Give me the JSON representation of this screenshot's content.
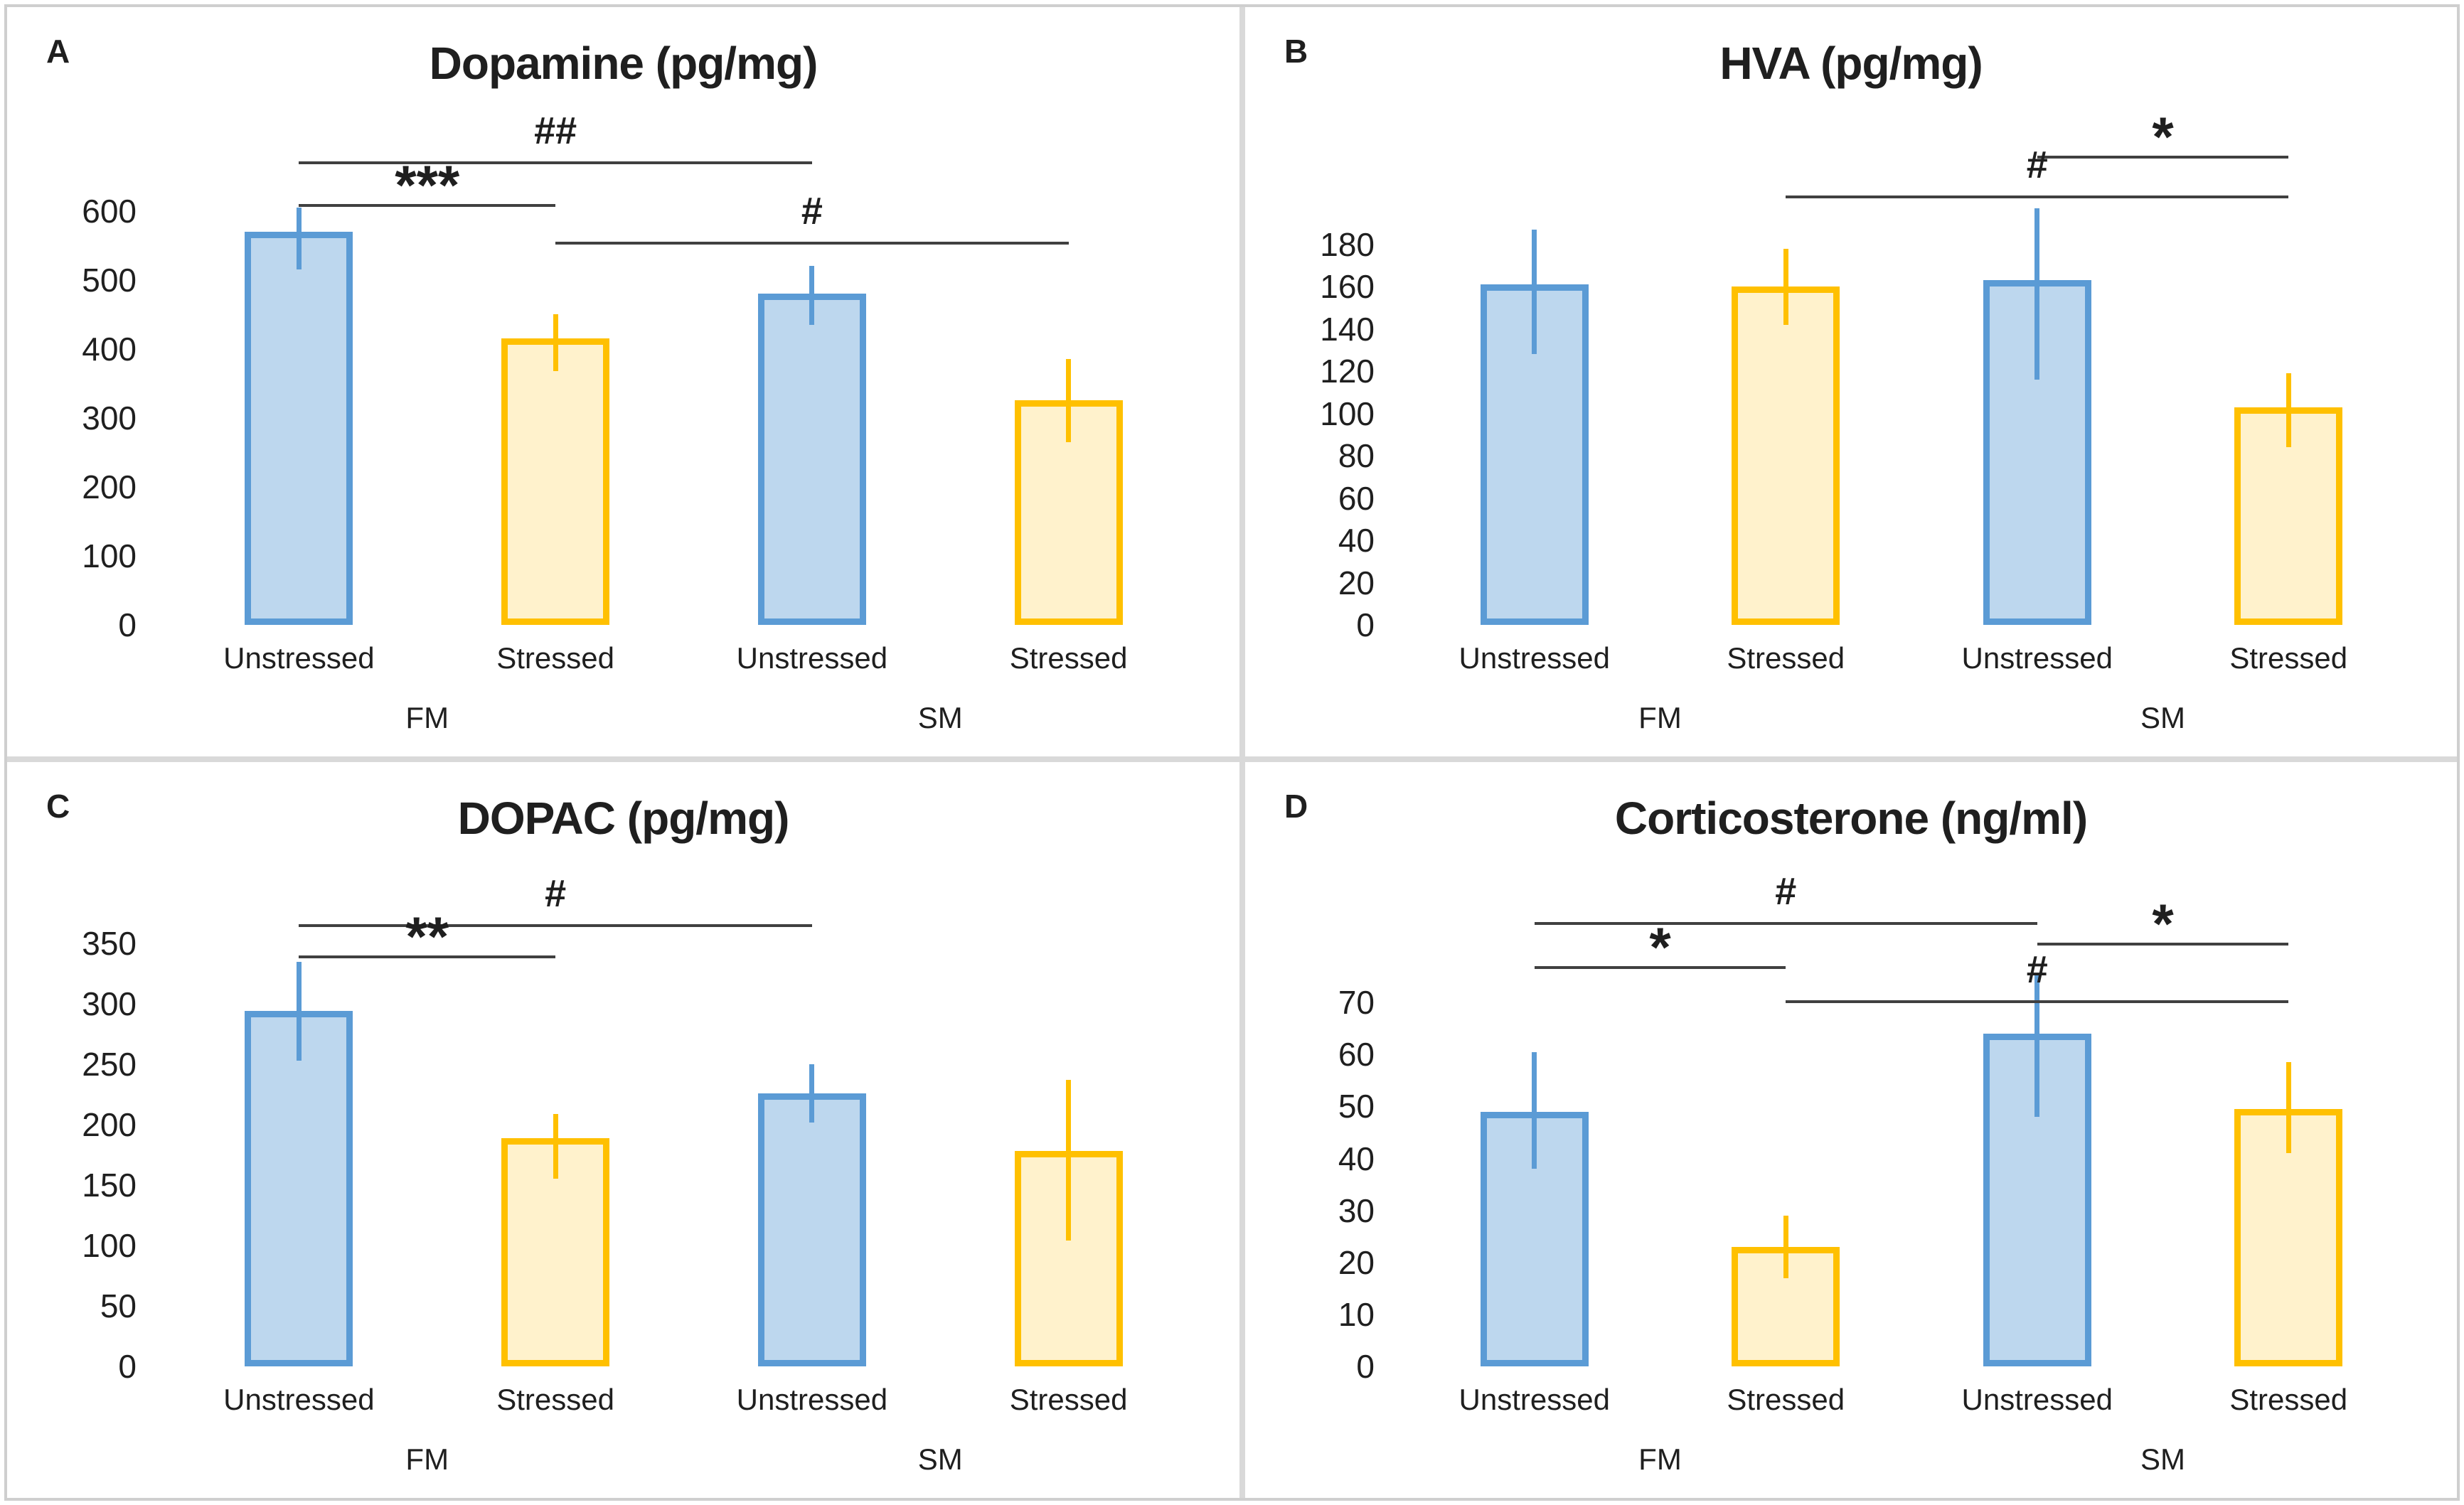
{
  "colors": {
    "blue_fill": "#BDD7EE",
    "blue_edge": "#5B9BD5",
    "yellow_fill": "#FFF2CC",
    "yellow_edge": "#FFC000",
    "sig_line": "#404040",
    "text": "#1f1f1f",
    "divider": "#d9d9d9"
  },
  "chart_data": [
    {
      "type": "bar",
      "panel_label": "A",
      "title": "Dopamine (pg/mg)",
      "categories": [
        "Unstressed",
        "Stressed",
        "Unstressed",
        "Stressed"
      ],
      "values": [
        570,
        415,
        480,
        325
      ],
      "error_low": [
        515,
        368,
        435,
        265
      ],
      "error_high": [
        605,
        450,
        520,
        385
      ],
      "bar_styles": [
        "blue",
        "yellow",
        "blue",
        "yellow"
      ],
      "y_ticks": [
        0,
        100,
        200,
        300,
        400,
        500,
        600
      ],
      "ylim": [
        0,
        720
      ],
      "group_labels": [
        "FM",
        "SM"
      ],
      "group_spans": [
        [
          0,
          1
        ],
        [
          2,
          3
        ]
      ],
      "significance": [
        {
          "from": 0,
          "to": 2,
          "symbol": "##",
          "y": 672
        },
        {
          "from": 0,
          "to": 1,
          "symbol": "***",
          "y": 610
        },
        {
          "from": 1,
          "to": 3,
          "symbol": "#",
          "y": 555
        }
      ]
    },
    {
      "type": "bar",
      "panel_label": "B",
      "title": "HVA (pg/mg)",
      "categories": [
        "Unstressed",
        "Stressed",
        "Unstressed",
        "Stressed"
      ],
      "values": [
        161,
        160,
        163,
        103
      ],
      "error_low": [
        128,
        142,
        116,
        84
      ],
      "error_high": [
        187,
        178,
        197,
        119
      ],
      "bar_styles": [
        "blue",
        "yellow",
        "blue",
        "yellow"
      ],
      "y_ticks": [
        0,
        20,
        40,
        60,
        80,
        100,
        120,
        140,
        160,
        180
      ],
      "ylim": [
        0,
        235
      ],
      "group_labels": [
        "FM",
        "SM"
      ],
      "group_spans": [
        [
          0,
          1
        ],
        [
          2,
          3
        ]
      ],
      "significance": [
        {
          "from": 2,
          "to": 3,
          "symbol": "*",
          "y": 222
        },
        {
          "from": 1,
          "to": 3,
          "symbol": "#",
          "y": 203
        }
      ]
    },
    {
      "type": "bar",
      "panel_label": "C",
      "title": "DOPAC (pg/mg)",
      "categories": [
        "Unstressed",
        "Stressed",
        "Unstressed",
        "Stressed"
      ],
      "values": [
        294,
        189,
        226,
        178
      ],
      "error_low": [
        253,
        155,
        202,
        104
      ],
      "error_high": [
        335,
        209,
        250,
        237
      ],
      "bar_styles": [
        "blue",
        "yellow",
        "blue",
        "yellow"
      ],
      "y_ticks": [
        0,
        50,
        100,
        150,
        200,
        250,
        300,
        350
      ],
      "ylim": [
        0,
        400
      ],
      "group_labels": [
        "FM",
        "SM"
      ],
      "group_spans": [
        [
          0,
          1
        ],
        [
          2,
          3
        ]
      ],
      "significance": [
        {
          "from": 0,
          "to": 2,
          "symbol": "#",
          "y": 366
        },
        {
          "from": 0,
          "to": 1,
          "symbol": "**",
          "y": 340
        }
      ]
    },
    {
      "type": "bar",
      "panel_label": "D",
      "title": "Corticosterone (ng/ml)",
      "categories": [
        "Unstressed",
        "Stressed",
        "Unstressed",
        "Stressed"
      ],
      "values": [
        49,
        23,
        64,
        49.5
      ],
      "error_low": [
        38,
        17,
        48,
        41
      ],
      "error_high": [
        60.5,
        29,
        75.5,
        58.5
      ],
      "bar_styles": [
        "blue",
        "yellow",
        "blue",
        "yellow"
      ],
      "y_ticks": [
        0,
        10,
        20,
        30,
        40,
        50,
        60,
        70
      ],
      "ylim": [
        0,
        93
      ],
      "group_labels": [
        "FM",
        "SM"
      ],
      "group_spans": [
        [
          0,
          1
        ],
        [
          2,
          3
        ]
      ],
      "significance": [
        {
          "from": 0,
          "to": 2,
          "symbol": "#",
          "y": 85.5
        },
        {
          "from": 2,
          "to": 3,
          "symbol": "*",
          "y": 81.5
        },
        {
          "from": 0,
          "to": 1,
          "symbol": "*",
          "y": 77
        },
        {
          "from": 1,
          "to": 3,
          "symbol": "#",
          "y": 70.5
        }
      ]
    }
  ]
}
